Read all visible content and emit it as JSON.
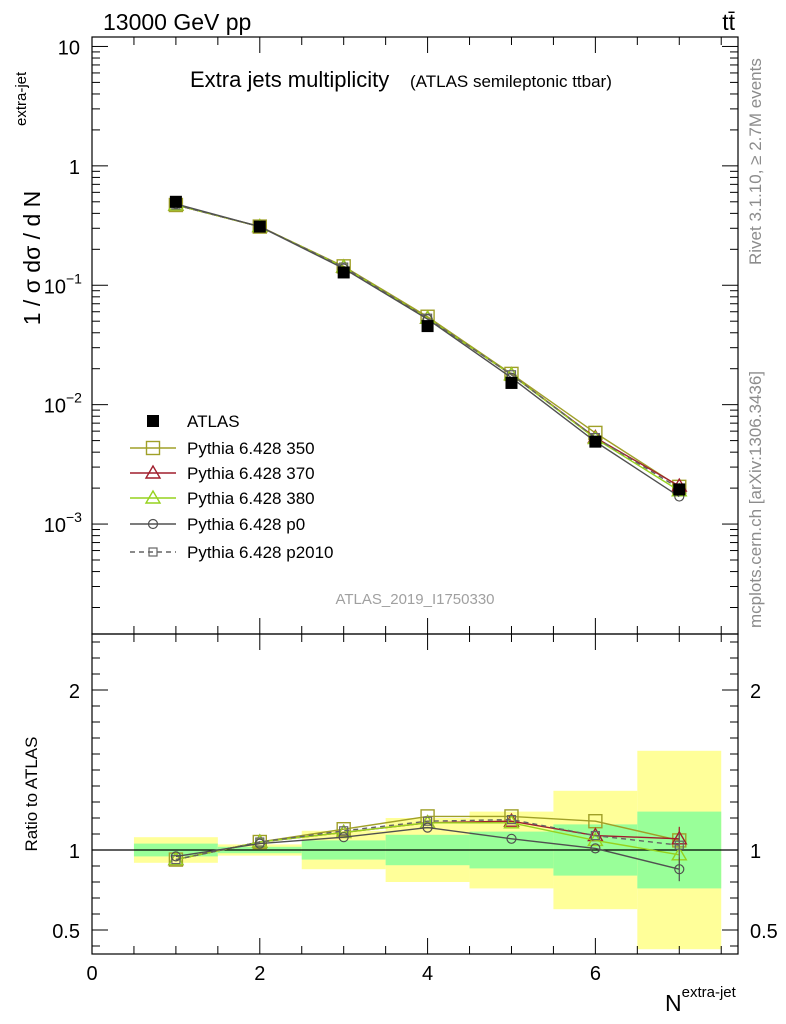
{
  "header": {
    "energy_label": "13000 GeV pp",
    "process_label": "tt̄"
  },
  "side_labels": {
    "rivet": "Rivet 3.1.10, ≥ 2.7M events",
    "mcplots": "mcplots.cern.ch [arXiv:1306.3436]"
  },
  "colors": {
    "data": "#000000",
    "p350": "#a0a028",
    "p370": "#a01e2d",
    "p380": "#96d21e",
    "p0": "#505050",
    "p2010": "#646464",
    "band_inner": "#99ff99",
    "band_outer": "#ffff99"
  },
  "chart_data": [
    {
      "id": "main",
      "type": "line",
      "title": "Extra jets multiplicity",
      "subtitle": "(ATLAS semileptonic ttbar)",
      "watermark": "ATLAS_2019_I1750330",
      "ylabel_main": "1 / σ dσ / d N",
      "ylabel_sup": "extra-jet",
      "yscale": "log",
      "ylim": [
        0.00012,
        12
      ],
      "xlim": [
        0,
        7.7
      ],
      "ytick_labels": [
        {
          "value": 10,
          "base": "10",
          "exp": ""
        },
        {
          "value": 1,
          "base": "1",
          "exp": ""
        },
        {
          "value": 0.1,
          "base": "10",
          "exp": "−1"
        },
        {
          "value": 0.01,
          "base": "10",
          "exp": "−2"
        },
        {
          "value": 0.001,
          "base": "10",
          "exp": "−3"
        }
      ],
      "legend_placement": "lower-left",
      "x": [
        1,
        2,
        3,
        4,
        5,
        6,
        7
      ],
      "series": [
        {
          "key": "data",
          "name": "ATLAS",
          "values": [
            0.5,
            0.31,
            0.128,
            0.0455,
            0.0152,
            0.0049,
            0.00195
          ],
          "marker": "filled-square"
        },
        {
          "key": "p350",
          "name": "Pythia 6.428 350",
          "values": [
            0.47,
            0.31,
            0.144,
            0.0545,
            0.0181,
            0.0058,
            0.00205
          ],
          "marker": "open-square",
          "dash": false
        },
        {
          "key": "p370",
          "name": "Pythia 6.428 370",
          "values": [
            0.47,
            0.31,
            0.142,
            0.053,
            0.0178,
            0.0053,
            0.00208
          ],
          "marker": "triangle",
          "dash": false
        },
        {
          "key": "p380",
          "name": "Pythia 6.428 380",
          "values": [
            0.47,
            0.31,
            0.142,
            0.053,
            0.0178,
            0.0052,
            0.0019
          ],
          "marker": "triangle",
          "dash": false
        },
        {
          "key": "p0",
          "name": "Pythia 6.428 p0",
          "values": [
            0.48,
            0.31,
            0.138,
            0.052,
            0.0168,
            0.0049,
            0.0017
          ],
          "marker": "circle",
          "dash": false
        },
        {
          "key": "p2010",
          "name": "Pythia 6.428 p2010",
          "values": [
            0.47,
            0.31,
            0.142,
            0.053,
            0.0178,
            0.0053,
            0.00199
          ],
          "marker": "small-square",
          "dash": true
        }
      ]
    },
    {
      "id": "ratio",
      "type": "line",
      "ylabel": "Ratio to ATLAS",
      "xlabel_main": "N",
      "xlabel_sup": "extra-jet",
      "ylim": [
        0.35,
        2.35
      ],
      "xlim": [
        0,
        7.7
      ],
      "yticks": [
        0.5,
        1,
        2
      ],
      "ytick_labels": [
        "0.5",
        "1",
        "2"
      ],
      "xticks": [
        0,
        2,
        4,
        6
      ],
      "xtick_labels": [
        "0",
        "2",
        "4",
        "6"
      ],
      "reference_line": 1,
      "bands": [
        {
          "x0": 0.5,
          "x1": 1.5,
          "inner": [
            0.96,
            1.04
          ],
          "outer": [
            0.92,
            1.08
          ]
        },
        {
          "x0": 1.5,
          "x1": 2.5,
          "inner": [
            0.98,
            1.02
          ],
          "outer": [
            0.965,
            1.035
          ]
        },
        {
          "x0": 2.5,
          "x1": 3.5,
          "inner": [
            0.94,
            1.06
          ],
          "outer": [
            0.88,
            1.12
          ]
        },
        {
          "x0": 3.5,
          "x1": 4.5,
          "inner": [
            0.905,
            1.095
          ],
          "outer": [
            0.8,
            1.2
          ]
        },
        {
          "x0": 4.5,
          "x1": 5.5,
          "inner": [
            0.885,
            1.115
          ],
          "outer": [
            0.76,
            1.24
          ]
        },
        {
          "x0": 5.5,
          "x1": 6.5,
          "inner": [
            0.84,
            1.16
          ],
          "outer": [
            0.63,
            1.37
          ]
        },
        {
          "x0": 6.5,
          "x1": 7.5,
          "inner": [
            0.76,
            1.24
          ],
          "outer": [
            0.38,
            1.62
          ]
        }
      ],
      "x": [
        1,
        2,
        3,
        4,
        5,
        6,
        7
      ],
      "series": [
        {
          "key": "p350",
          "name": "Pythia 6.428 350",
          "values": [
            0.94,
            1.05,
            1.13,
            1.21,
            1.21,
            1.18,
            1.06
          ]
        },
        {
          "key": "p370",
          "name": "Pythia 6.428 370",
          "values": [
            0.94,
            1.05,
            1.11,
            1.17,
            1.18,
            1.09,
            1.07
          ]
        },
        {
          "key": "p380",
          "name": "Pythia 6.428 380",
          "values": [
            0.94,
            1.05,
            1.11,
            1.17,
            1.17,
            1.06,
            0.97
          ]
        },
        {
          "key": "p0",
          "name": "Pythia 6.428 p0",
          "values": [
            0.96,
            1.04,
            1.08,
            1.14,
            1.07,
            1.01,
            0.88
          ]
        },
        {
          "key": "p2010",
          "name": "Pythia 6.428 p2010",
          "values": [
            0.94,
            1.05,
            1.12,
            1.18,
            1.19,
            1.09,
            1.03
          ]
        }
      ]
    }
  ]
}
